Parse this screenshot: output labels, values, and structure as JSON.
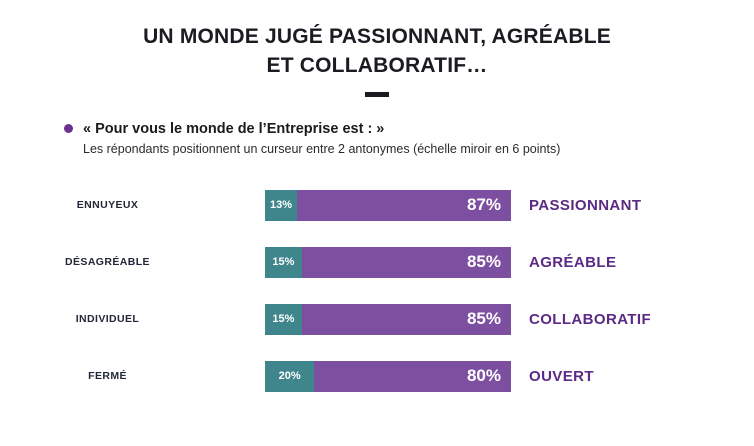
{
  "title": {
    "line1": "UN MONDE JUGÉ PASSIONNANT, AGRÉABLE",
    "line2": "ET COLLABORATIF…"
  },
  "question": {
    "heading": "« Pour vous le monde de l’Entreprise est : »",
    "subheading": "Les répondants positionnent un curseur entre 2 antonymes (échelle miroir en 6 points)"
  },
  "chart_data": {
    "type": "bar",
    "subtype": "horizontal-stacked-mirror-scale",
    "unit": "%",
    "legend_position": "none",
    "grid": false,
    "rows": [
      {
        "left_label": "ENNUYEUX",
        "left_value": 13,
        "left_value_label": "13%",
        "right_value": 87,
        "right_value_label": "87%",
        "right_label": "PASSIONNANT"
      },
      {
        "left_label": "DÉSAGRÉABLE",
        "left_value": 15,
        "left_value_label": "15%",
        "right_value": 85,
        "right_value_label": "85%",
        "right_label": "AGRÉABLE"
      },
      {
        "left_label": "INDIVIDUEL",
        "left_value": 15,
        "left_value_label": "15%",
        "right_value": 85,
        "right_value_label": "85%",
        "right_label": "COLLABORATIF"
      },
      {
        "left_label": "FERMÉ",
        "left_value": 20,
        "left_value_label": "20%",
        "right_value": 80,
        "right_value_label": "80%",
        "right_label": "OUVERT"
      }
    ],
    "colors": {
      "left_segment": "#3f868c",
      "right_segment": "#7d4fa0",
      "right_label_text": "#5b2a84",
      "bullet": "#6b3090",
      "title_text": "#1b1b22"
    }
  }
}
